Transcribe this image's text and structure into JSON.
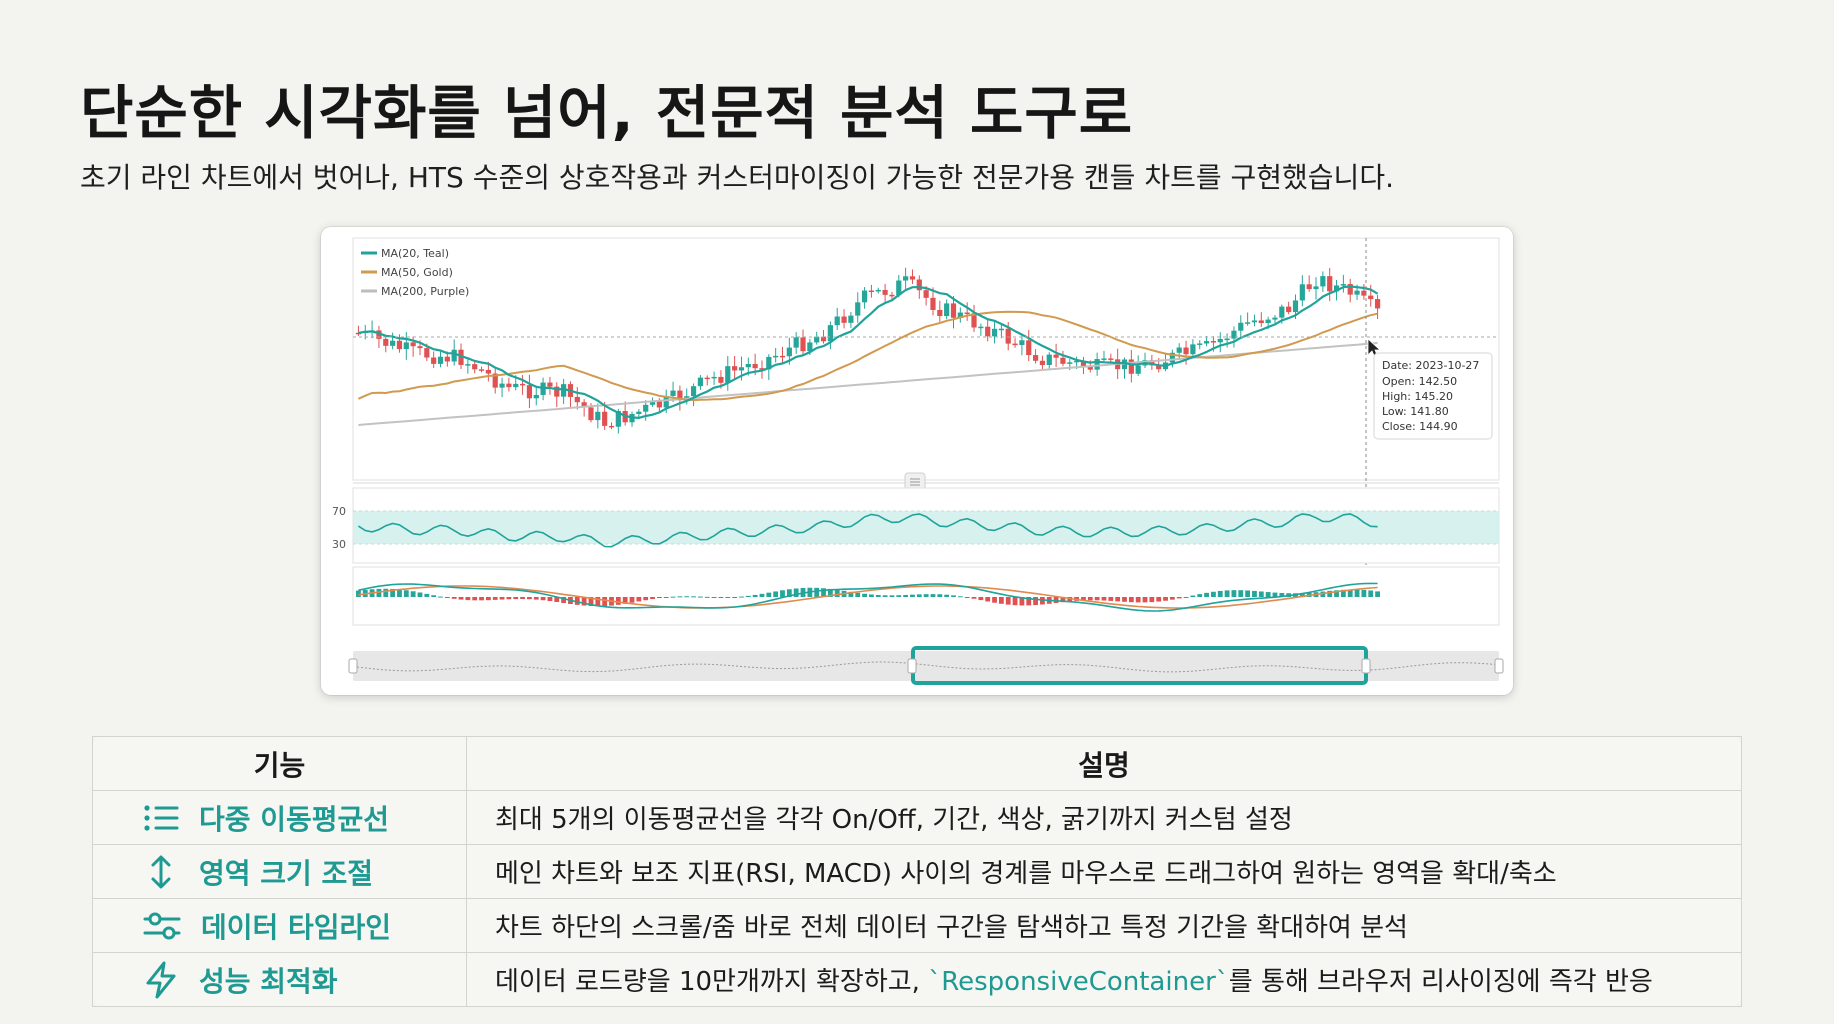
{
  "header": {
    "title": "단순한 시각화를 넘어, 전문적 분석 도구로",
    "subtitle": "초기 라인 차트에서 벗어나, HTS 수준의 상호작용과 커스터마이징이 가능한 전문가용 캔들 차트를 구현했습니다."
  },
  "chart": {
    "legend": [
      {
        "label": "MA(20, Teal)",
        "color": "#1fa39b"
      },
      {
        "label": "MA(50, Gold)",
        "color": "#d19a4e"
      },
      {
        "label": "MA(200, Purple)",
        "color": "#c2c2c2"
      }
    ],
    "colors": {
      "up": "#26a69a",
      "down": "#e05252",
      "rsi_band": "#cdeeea"
    },
    "tooltip": {
      "date": "Date: 2023-10-27",
      "open": "Open: 142.50",
      "high": "High: 145.20",
      "low": "Low: 141.80",
      "close": "Close: 144.90"
    },
    "rsi_ticks": [
      "70",
      "30"
    ]
  },
  "table": {
    "headers": {
      "feature": "기능",
      "description": "설명"
    },
    "rows": [
      {
        "icon": "list-icon",
        "feature": "다중 이동평균선",
        "description": "최대 5개의 이동평균선을 각각 On/Off, 기간, 색상, 굵기까지 커스텀 설정"
      },
      {
        "icon": "vertical-arrows-icon",
        "feature": "영역 크기 조절",
        "description": "메인 차트와 보조 지표(RSI, MACD) 사이의 경계를 마우스로 드래그하여 원하는 영역을 확대/축소"
      },
      {
        "icon": "sliders-icon",
        "feature": "데이터 타임라인",
        "description": "차트 하단의 스크롤/줌 바로 전체 데이터 구간을 탐색하고 특정 기간을 확대하여 분석"
      },
      {
        "icon": "lightning-icon",
        "feature": "성능 최적화",
        "description_before": "데이터 로드량을 10만개까지 확장하고, ",
        "description_code": "`ResponsiveContainer`",
        "description_after": "를 통해 브라우저 리사이징에 즉각 반응"
      }
    ]
  }
}
